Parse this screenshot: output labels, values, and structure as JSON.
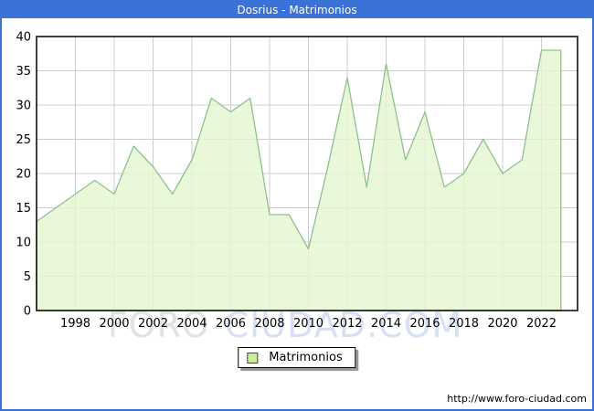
{
  "title": "Dosrius - Matrimonios",
  "watermark": {
    "text": "FORO-CIUDAD.COM"
  },
  "footer": {
    "url": "http://www.foro-ciudad.com"
  },
  "colors": {
    "titlebar_bg": "#3B72D8",
    "titlebar_text": "#FFFFFF",
    "frame_border": "#3B72D8",
    "plot_border": "#000000",
    "gridline": "#CCCCCC",
    "area_fill": "#E3F7CF",
    "area_line": "#8FC08F",
    "legend_swatch_fill": "#CCEE99",
    "legend_swatch_border": "#444444",
    "tick_label": "#000000",
    "watermark_gray": "#E2E2E2",
    "watermark_blue": "#D7E0F4"
  },
  "chart_data": {
    "type": "area",
    "title": "Dosrius - Matrimonios",
    "xlabel": "",
    "ylabel": "",
    "legend": "Matrimonios",
    "legend_position": "bottom-center",
    "grid": true,
    "ylim": [
      0,
      40
    ],
    "yticks": [
      0,
      5,
      10,
      15,
      20,
      25,
      30,
      35,
      40
    ],
    "xticks": [
      1998,
      2000,
      2002,
      2004,
      2006,
      2008,
      2010,
      2012,
      2014,
      2016,
      2018,
      2020,
      2022
    ],
    "x": [
      1996,
      1997,
      1998,
      1999,
      2000,
      2001,
      2002,
      2003,
      2004,
      2005,
      2006,
      2007,
      2008,
      2009,
      2010,
      2011,
      2012,
      2013,
      2014,
      2015,
      2016,
      2017,
      2018,
      2019,
      2020,
      2021,
      2022,
      2023
    ],
    "values": [
      13,
      15,
      17,
      19,
      17,
      24,
      21,
      17,
      22,
      31,
      29,
      31,
      14,
      14,
      9,
      21,
      34,
      18,
      36,
      22,
      29,
      18,
      20,
      25,
      20,
      22,
      38,
      38
    ]
  }
}
